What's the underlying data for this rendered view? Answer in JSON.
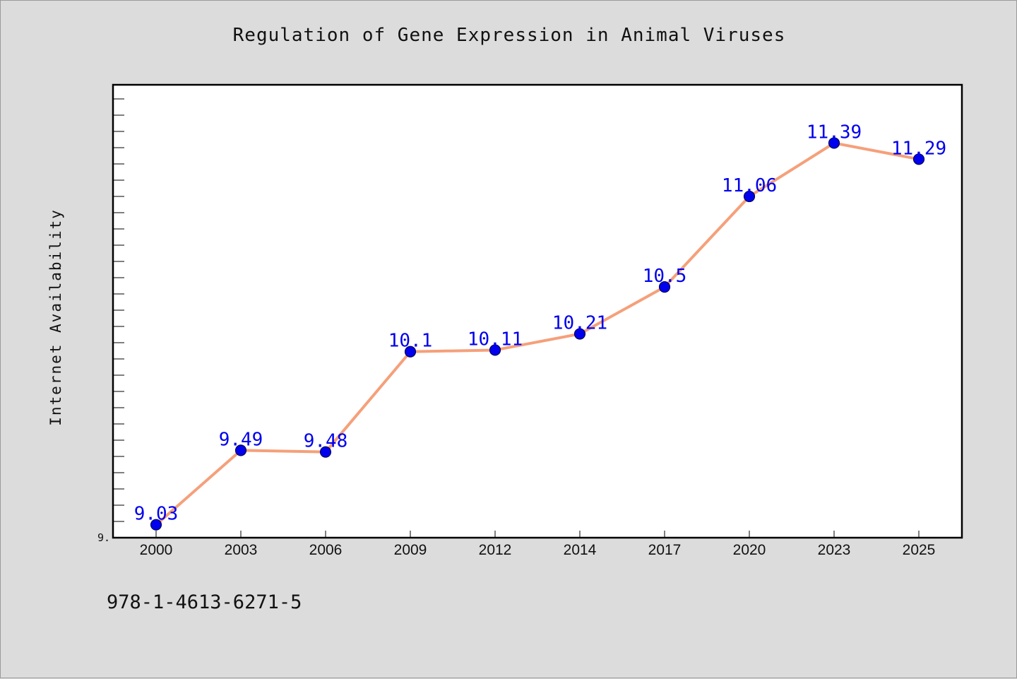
{
  "chart_data": {
    "type": "line",
    "title": "Regulation of Gene Expression in Animal Viruses",
    "xlabel": "",
    "ylabel": "Internet Availability",
    "categories": [
      "2000",
      "2003",
      "2006",
      "2009",
      "2012",
      "2014",
      "2017",
      "2020",
      "2023",
      "2025"
    ],
    "series": [
      {
        "values": [
          9.03,
          9.49,
          9.48,
          10.1,
          10.11,
          10.21,
          10.5,
          11.06,
          11.39,
          11.29
        ],
        "data_labels": [
          "9.03",
          "9.49",
          "9.48",
          "10.1",
          "10.11",
          "10.21",
          "10.5",
          "11.06",
          "11.39",
          "11.29"
        ]
      }
    ],
    "ylim": [
      8.95,
      11.75
    ],
    "y_tick_labels": [
      "9."
    ],
    "grid": false,
    "line_color": "#f5a07a",
    "marker_color": "#0000ee",
    "label_color": "#0000ee"
  },
  "footer": {
    "code": "978-1-4613-6271-5"
  }
}
